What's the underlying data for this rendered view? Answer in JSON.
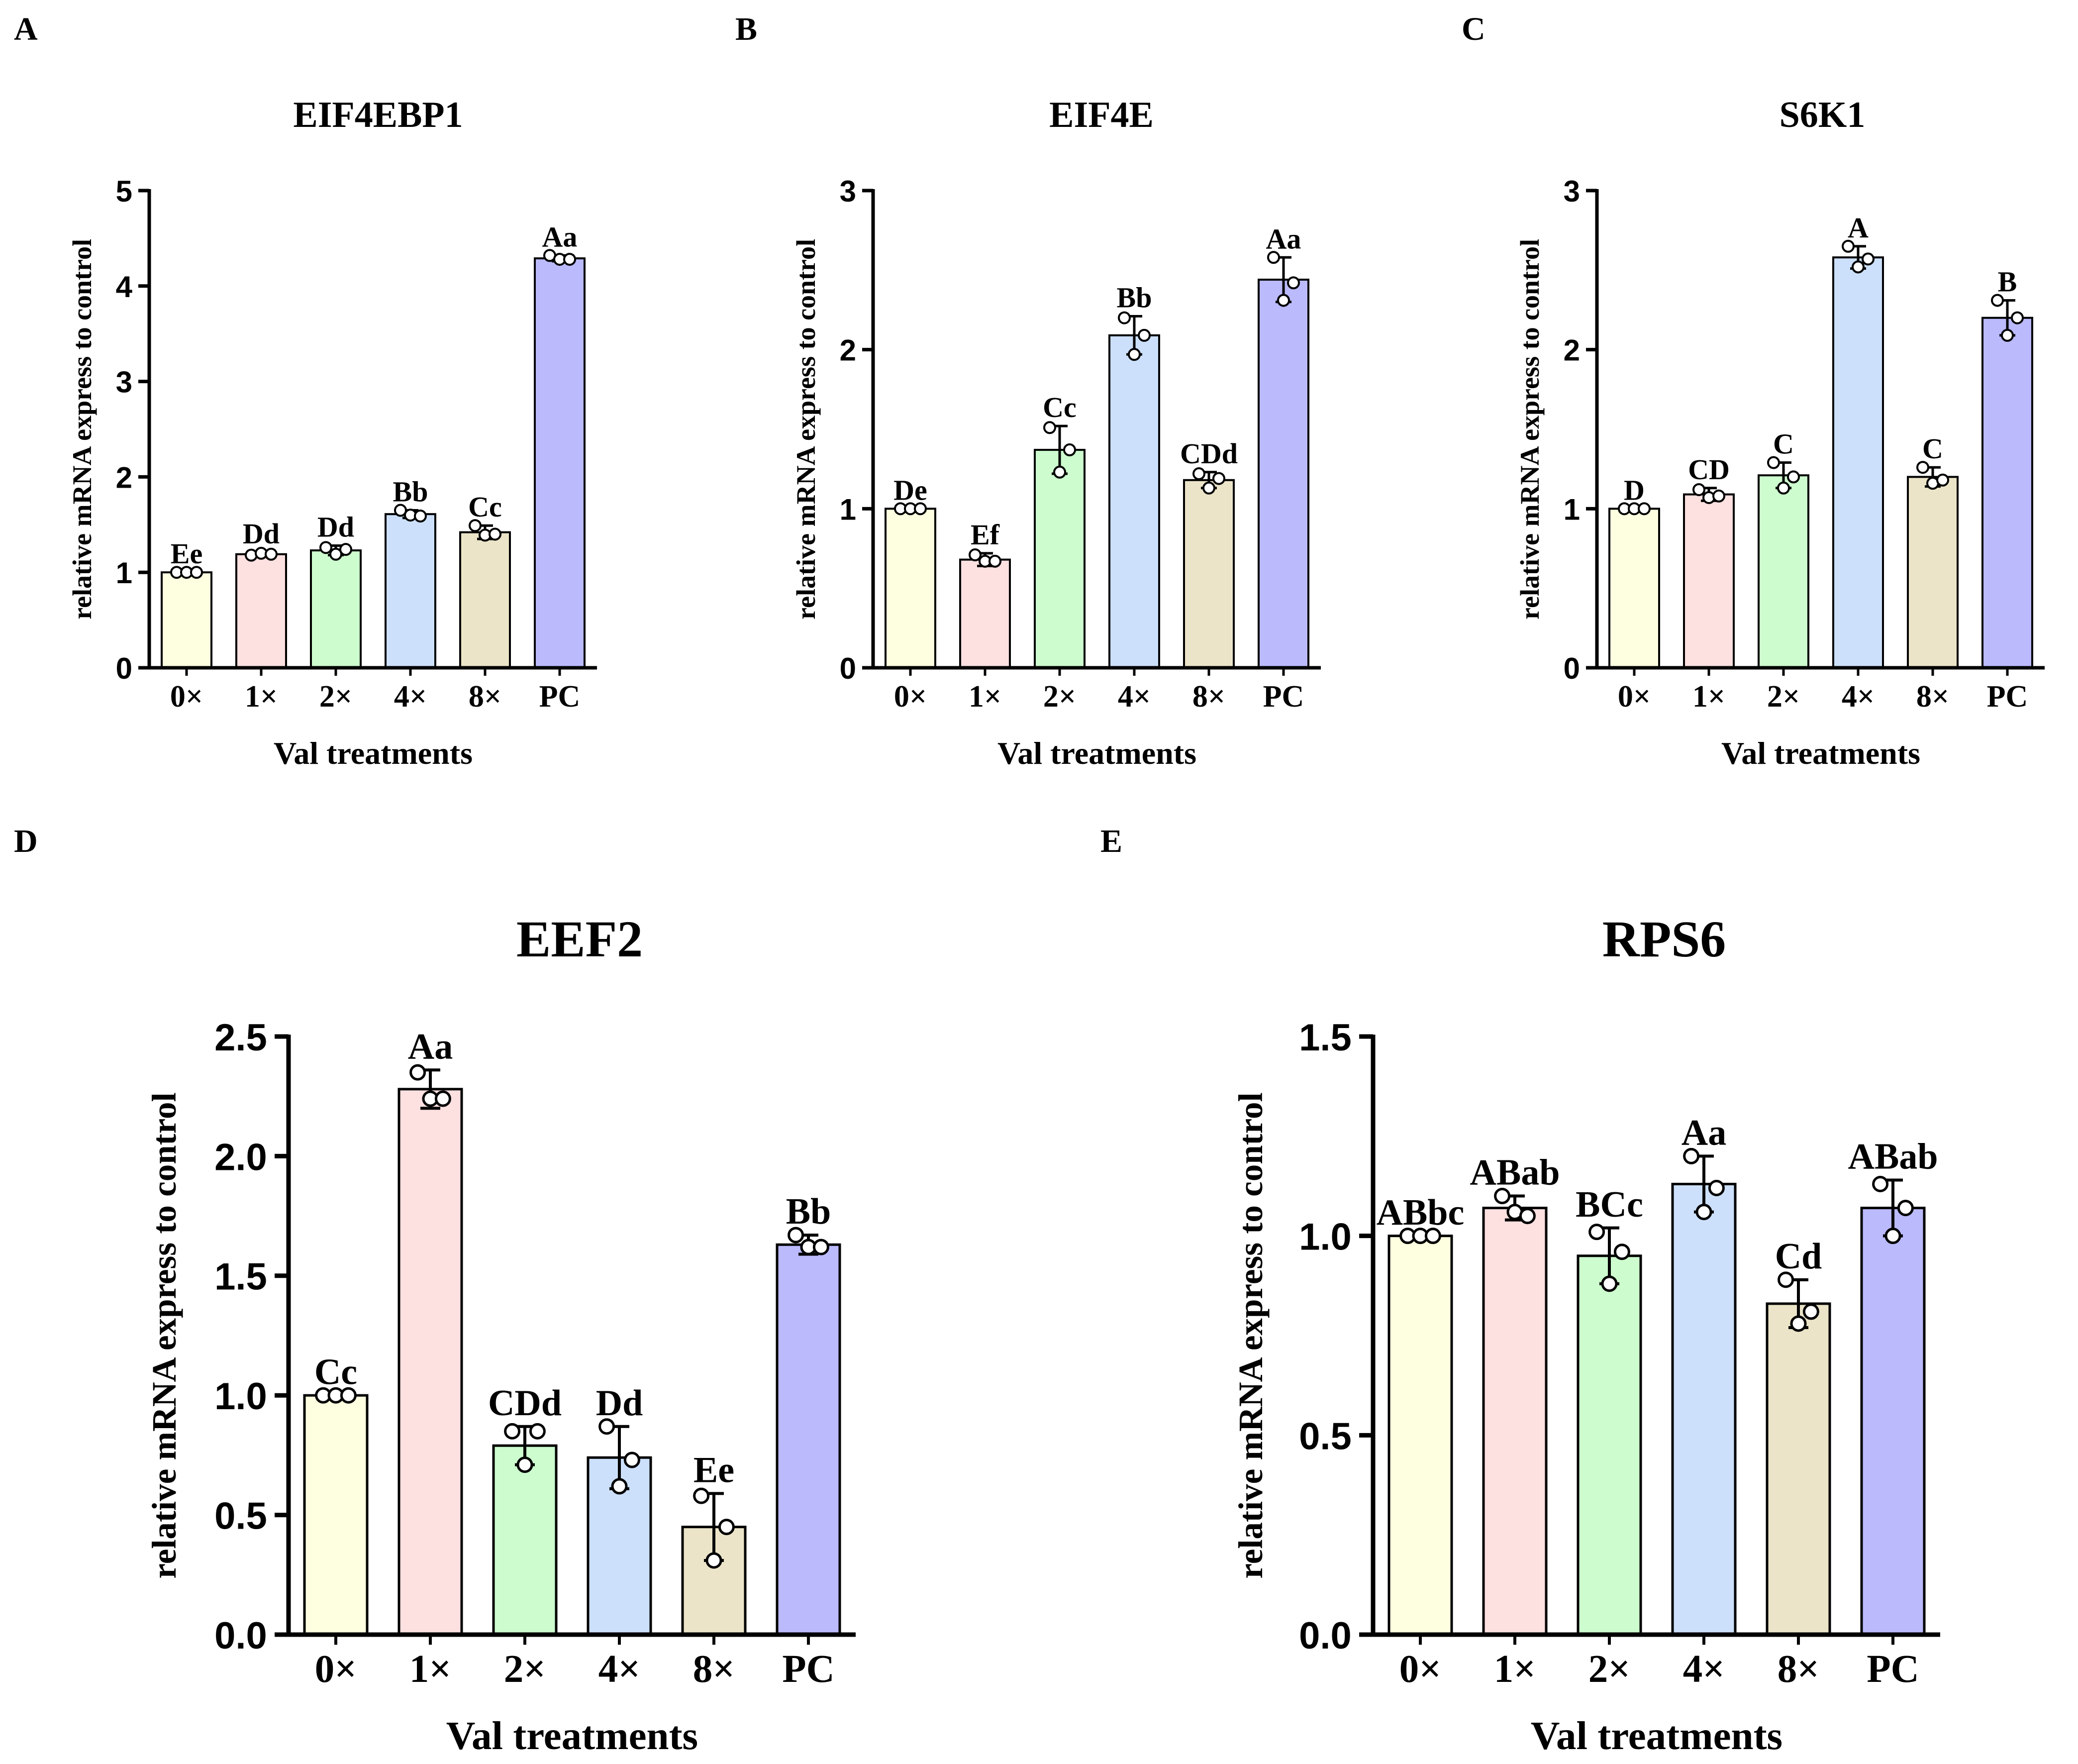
{
  "chart_data": [
    {
      "panel": "A",
      "type": "bar",
      "title": "EIF4EBP1",
      "xlabel": "Val treatments",
      "ylabel": "relative mRNA express to control",
      "categories": [
        "0×",
        "1×",
        "2×",
        "4×",
        "8×",
        "PC"
      ],
      "values": [
        1.0,
        1.19,
        1.23,
        1.61,
        1.42,
        4.29
      ],
      "error": [
        0.0,
        0.02,
        0.05,
        0.04,
        0.07,
        0.03
      ],
      "points": [
        [
          1.0,
          1.0,
          1.0
        ],
        [
          1.18,
          1.2,
          1.19
        ],
        [
          1.26,
          1.19,
          1.24
        ],
        [
          1.65,
          1.6,
          1.59
        ],
        [
          1.49,
          1.39,
          1.4
        ],
        [
          4.32,
          4.28,
          4.28
        ]
      ],
      "labels": [
        "Ee",
        "Dd",
        "Dd",
        "Bb",
        "Cc",
        "Aa"
      ],
      "ylim": [
        0,
        5
      ],
      "yticks": [
        0,
        1,
        2,
        3,
        4,
        5
      ],
      "ytick_labels": [
        "0",
        "1",
        "2",
        "3",
        "4",
        "5"
      ],
      "colors": [
        "#fefee0",
        "#fde0e0",
        "#cdfcce",
        "#cce0fb",
        "#ebe4c8",
        "#babafd"
      ]
    },
    {
      "panel": "B",
      "type": "bar",
      "title": "EIF4E",
      "xlabel": "Val treatments",
      "ylabel": "relative mRNA express to control",
      "categories": [
        "0×",
        "1×",
        "2×",
        "4×",
        "8×",
        "PC"
      ],
      "values": [
        1.0,
        0.68,
        1.37,
        2.09,
        1.18,
        2.44
      ],
      "error": [
        0.0,
        0.04,
        0.15,
        0.12,
        0.05,
        0.14
      ],
      "points": [
        [
          1.0,
          1.0,
          1.0
        ],
        [
          0.71,
          0.67,
          0.67
        ],
        [
          1.51,
          1.23,
          1.37
        ],
        [
          2.2,
          1.97,
          2.09
        ],
        [
          1.22,
          1.13,
          1.19
        ],
        [
          2.58,
          2.31,
          2.42
        ]
      ],
      "labels": [
        "De",
        "Ef",
        "Cc",
        "Bb",
        "CDd",
        "Aa"
      ],
      "ylim": [
        0,
        3
      ],
      "yticks": [
        0,
        1,
        2,
        3
      ],
      "ytick_labels": [
        "0",
        "1",
        "2",
        "3"
      ],
      "colors": [
        "#fefee0",
        "#fde0e0",
        "#cdfcce",
        "#cce0fb",
        "#ebe4c8",
        "#babafd"
      ]
    },
    {
      "panel": "C",
      "type": "bar",
      "title": "S6K1",
      "xlabel": "Val treatments",
      "ylabel": "relative mRNA express to control",
      "categories": [
        "0×",
        "1×",
        "2×",
        "4×",
        "8×",
        "PC"
      ],
      "values": [
        1.0,
        1.09,
        1.21,
        2.58,
        1.2,
        2.2
      ],
      "error": [
        0.0,
        0.04,
        0.08,
        0.07,
        0.06,
        0.11
      ],
      "points": [
        [
          1.0,
          1.0,
          1.0
        ],
        [
          1.12,
          1.07,
          1.08
        ],
        [
          1.29,
          1.13,
          1.2
        ],
        [
          2.65,
          2.52,
          2.57
        ],
        [
          1.26,
          1.16,
          1.18
        ],
        [
          2.31,
          2.09,
          2.2
        ]
      ],
      "labels": [
        "D",
        "CD",
        "C",
        "A",
        "C",
        "B"
      ],
      "ylim": [
        0,
        3
      ],
      "yticks": [
        0,
        1,
        2,
        3
      ],
      "ytick_labels": [
        "0",
        "1",
        "2",
        "3"
      ],
      "colors": [
        "#fefee0",
        "#fde0e0",
        "#cdfcce",
        "#cce0fb",
        "#ebe4c8",
        "#babafd"
      ]
    },
    {
      "panel": "D",
      "type": "bar",
      "title": "EEF2",
      "xlabel": "Val treatments",
      "ylabel": "relative mRNA express to control",
      "categories": [
        "0×",
        "1×",
        "2×",
        "4×",
        "8×",
        "PC"
      ],
      "values": [
        1.0,
        2.28,
        0.79,
        0.74,
        0.45,
        1.63
      ],
      "error": [
        0.0,
        0.08,
        0.08,
        0.13,
        0.14,
        0.04
      ],
      "points": [
        [
          1.0,
          1.0,
          1.0
        ],
        [
          2.35,
          2.24,
          2.24
        ],
        [
          0.85,
          0.71,
          0.85
        ],
        [
          0.87,
          0.62,
          0.73
        ],
        [
          0.58,
          0.31,
          0.45
        ],
        [
          1.67,
          1.62,
          1.62
        ]
      ],
      "labels": [
        "Cc",
        "Aa",
        "CDd",
        "Dd",
        "Ee",
        "Bb"
      ],
      "ylim": [
        0,
        2.5
      ],
      "yticks": [
        0,
        0.5,
        1.0,
        1.5,
        2.0,
        2.5
      ],
      "ytick_labels": [
        "0.0",
        "0.5",
        "1.0",
        "1.5",
        "2.0",
        "2.5"
      ],
      "colors": [
        "#fefee0",
        "#fde0e0",
        "#cdfcce",
        "#cce0fb",
        "#ebe4c8",
        "#babafd"
      ]
    },
    {
      "panel": "E",
      "type": "bar",
      "title": "RPS6",
      "xlabel": "Val treatments",
      "ylabel": "relative mRNA express to control",
      "categories": [
        "0×",
        "1×",
        "2×",
        "4×",
        "8×",
        "PC"
      ],
      "values": [
        1.0,
        1.07,
        0.95,
        1.13,
        0.83,
        1.07
      ],
      "error": [
        0.0,
        0.03,
        0.07,
        0.07,
        0.06,
        0.07
      ],
      "points": [
        [
          1.0,
          1.0,
          1.0
        ],
        [
          1.1,
          1.06,
          1.05
        ],
        [
          1.01,
          0.88,
          0.96
        ],
        [
          1.2,
          1.06,
          1.12
        ],
        [
          0.89,
          0.78,
          0.81
        ],
        [
          1.13,
          1.0,
          1.07
        ]
      ],
      "labels": [
        "ABbc",
        "ABab",
        "BCc",
        "Aa",
        "Cd",
        "ABab"
      ],
      "ylim": [
        0,
        1.5
      ],
      "yticks": [
        0,
        0.5,
        1.0,
        1.5
      ],
      "ytick_labels": [
        "0.0",
        "0.5",
        "1.0",
        "1.5"
      ],
      "colors": [
        "#fefee0",
        "#fde0e0",
        "#cdfcce",
        "#cce0fb",
        "#ebe4c8",
        "#babafd"
      ]
    }
  ]
}
